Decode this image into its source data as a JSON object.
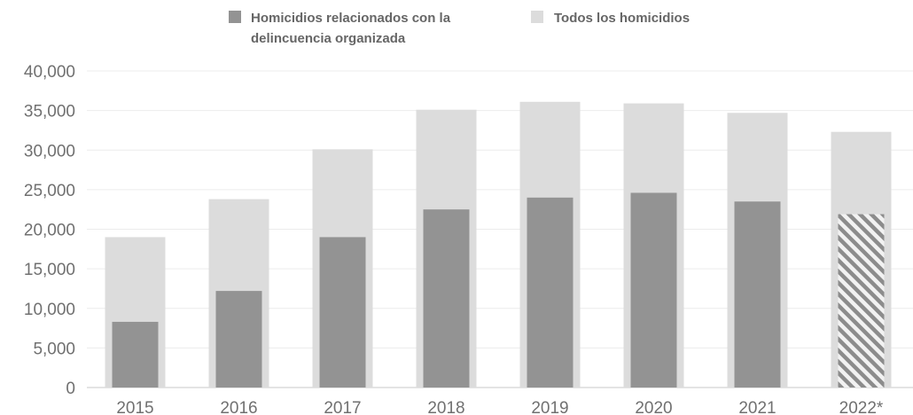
{
  "chart_data": {
    "type": "bar",
    "categories": [
      "2015",
      "2016",
      "2017",
      "2018",
      "2019",
      "2020",
      "2021",
      "2022*"
    ],
    "series": [
      {
        "name": "Todos los homicidios",
        "values": [
          19000,
          23800,
          30100,
          35100,
          36100,
          35900,
          34700,
          32300
        ],
        "color": "#dcdcdc"
      },
      {
        "name": "Homicidios relacionados con la delincuencia organizada",
        "values": [
          8300,
          12200,
          19000,
          22500,
          24000,
          24600,
          23500,
          21900
        ],
        "color": "#939393"
      }
    ],
    "legend_lines": {
      "organized": [
        "Homicidios relacionados con la",
        "delincuencia organizada"
      ],
      "all": [
        "Todos los homicidios"
      ]
    },
    "y_ticks": [
      "0",
      "5,000",
      "10,000",
      "15,000",
      "20,000",
      "25,000",
      "30,000",
      "35,000",
      "40,000"
    ],
    "ylim": [
      0,
      40000
    ],
    "hatched_categories": [
      "2022*"
    ],
    "grid": true,
    "legend_position": "top-center",
    "title": "",
    "xlabel": "",
    "ylabel": ""
  }
}
